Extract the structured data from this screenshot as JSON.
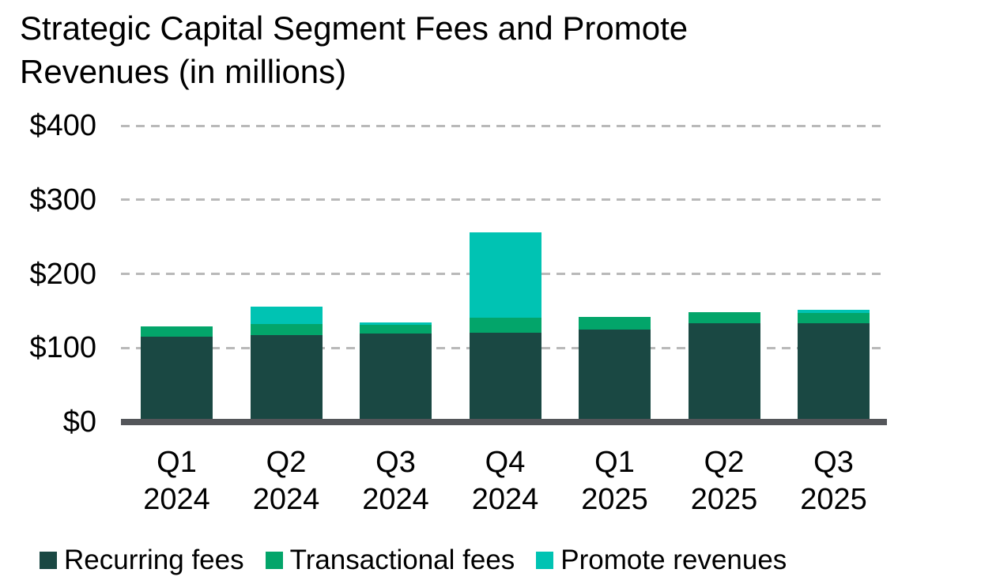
{
  "chart_data": {
    "type": "bar",
    "stacked": true,
    "title": "Strategic Capital Segment Fees and Promote Revenues (in millions)",
    "title_lines": [
      "Strategic Capital Segment Fees and Promote",
      "Revenues (in millions)"
    ],
    "categories": [
      "Q1 2024",
      "Q2 2024",
      "Q3 2024",
      "Q4 2024",
      "Q1 2025",
      "Q2 2025",
      "Q3 2025"
    ],
    "series": [
      {
        "name": "Recurring fees",
        "color": "#1a4843",
        "values": [
          115,
          117,
          119,
          121,
          125,
          133,
          133
        ]
      },
      {
        "name": "Transactional fees",
        "color": "#03a56a",
        "values": [
          14,
          15,
          12,
          20,
          17,
          15,
          14
        ]
      },
      {
        "name": "Promote revenues",
        "color": "#00c3b3",
        "values": [
          0,
          24,
          4,
          115,
          0,
          0,
          5
        ]
      }
    ],
    "y_axis": {
      "ticks": [
        {
          "label": "$400",
          "value": 400
        },
        {
          "label": "$300",
          "value": 300
        },
        {
          "label": "$200",
          "value": 200
        },
        {
          "label": "$100",
          "value": 100
        },
        {
          "label": "$0",
          "value": 0
        }
      ],
      "min": 0,
      "max": 400
    },
    "grid": "horizontal-dashed",
    "legend_position": "bottom",
    "colors": {
      "grid_line": "#b9b9b9",
      "axis_line": "#54565a",
      "text": "#000000"
    }
  }
}
